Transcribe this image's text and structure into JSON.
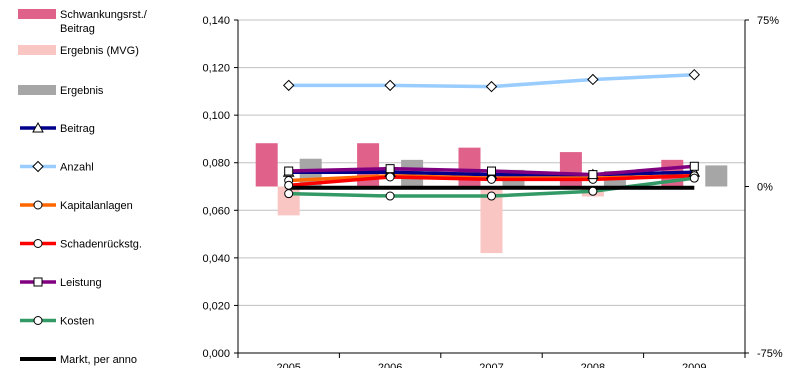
{
  "chart_data": {
    "type": "bar+line",
    "x": [
      "2005",
      "2006",
      "2007",
      "2008",
      "2009"
    ],
    "y_left": {
      "range": [
        0,
        0.14
      ],
      "ticks": [
        "0,000",
        "0,020",
        "0,040",
        "0,060",
        "0,080",
        "0,100",
        "0,120",
        "0,140"
      ]
    },
    "y_right": {
      "range": [
        -75,
        75
      ],
      "ticks": [
        "75%",
        "0%",
        "-75%"
      ]
    },
    "grid": "horizontal",
    "legend_position": "left",
    "bars": [
      {
        "name": "Schwankungsrst./ Beitrag",
        "name_lines": [
          "Schwankungsrst./",
          "Beitrag"
        ],
        "color": "#e0628a",
        "values": [
          19.5,
          19.5,
          17.5,
          15.5,
          12
        ]
      },
      {
        "name": "Ergebnis (MVG)",
        "color": "#f9c6c3",
        "values": [
          -13,
          0,
          -30,
          -4.5,
          0
        ]
      },
      {
        "name": "Ergebnis",
        "color": "#a6a6a6",
        "values": [
          12.5,
          12,
          7.5,
          7,
          9.5
        ]
      }
    ],
    "lines": [
      {
        "name": "Beitrag",
        "color": "#00008b",
        "marker": "triangle",
        "values": [
          0.076,
          0.076,
          0.075,
          0.075,
          0.076
        ]
      },
      {
        "name": "Anzahl",
        "color": "#99ccff",
        "marker": "diamond",
        "values": [
          0.1125,
          0.1125,
          0.112,
          0.115,
          0.117
        ]
      },
      {
        "name": "Kapitalanlagen",
        "color": "#ff6600",
        "marker": "circle",
        "values": [
          0.0725,
          0.0745,
          0.0735,
          0.0735,
          0.0745
        ]
      },
      {
        "name": "Schadenrückstg.",
        "color": "#ff0000",
        "marker": "circle",
        "values": [
          0.0705,
          0.074,
          0.073,
          0.073,
          0.0745
        ]
      },
      {
        "name": "Leistung",
        "color": "#800080",
        "marker": "square",
        "values": [
          0.0765,
          0.0775,
          0.0765,
          0.075,
          0.0785
        ]
      },
      {
        "name": "Kosten",
        "color": "#339966",
        "marker": "circle",
        "values": [
          0.067,
          0.066,
          0.066,
          0.068,
          0.0735
        ]
      },
      {
        "name": "Markt, per anno",
        "color": "#000000",
        "marker": "none",
        "values": [
          0.0695,
          0.0695,
          0.0695,
          0.0695,
          0.0695
        ]
      }
    ]
  }
}
